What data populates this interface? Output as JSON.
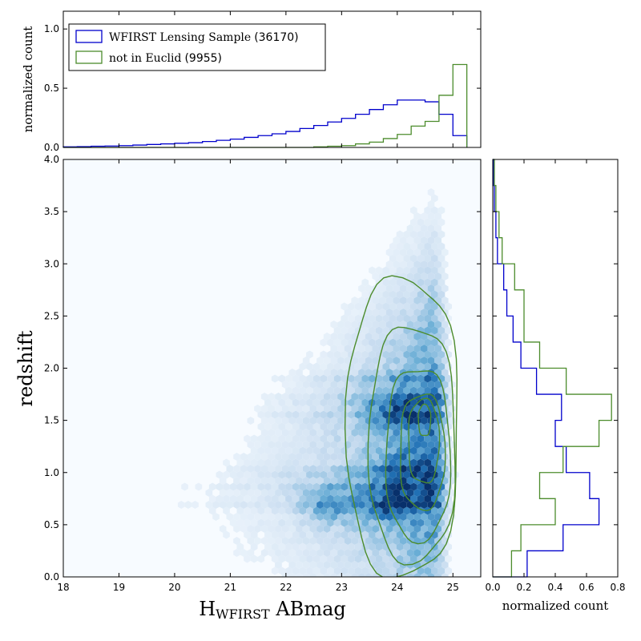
{
  "chart_data": [
    {
      "type": "histogram",
      "panel": "top",
      "ylabel": "normalized count",
      "xlim": [
        18,
        25.5
      ],
      "ylim": [
        0,
        1.15
      ],
      "yticks": [
        "0.0",
        "0.5",
        "1.0"
      ],
      "ytick_values": [
        0,
        0.5,
        1.0
      ],
      "legend": {
        "placement": "upper-left",
        "entries": [
          {
            "label": "WFIRST Lensing Sample",
            "count": "(36170)",
            "color": "#0000cc"
          },
          {
            "label": "not in Euclid",
            "count": "(9955)",
            "color": "#4c8c2c"
          }
        ]
      },
      "bin_edges": [
        18.0,
        18.25,
        18.5,
        18.75,
        19.0,
        19.25,
        19.5,
        19.75,
        20.0,
        20.25,
        20.5,
        20.75,
        21.0,
        21.25,
        21.5,
        21.75,
        22.0,
        22.25,
        22.5,
        22.75,
        23.0,
        23.25,
        23.5,
        23.75,
        24.0,
        24.25,
        24.5,
        24.75,
        25.0,
        25.25
      ],
      "series": [
        {
          "name": "WFIRST Lensing Sample",
          "color": "#0000cc",
          "values": [
            0.005,
            0.007,
            0.01,
            0.012,
            0.015,
            0.02,
            0.025,
            0.03,
            0.035,
            0.04,
            0.05,
            0.06,
            0.07,
            0.085,
            0.1,
            0.115,
            0.135,
            0.16,
            0.185,
            0.215,
            0.245,
            0.28,
            0.32,
            0.36,
            0.4,
            0.4,
            0.385,
            0.28,
            0.1
          ]
        },
        {
          "name": "not in Euclid",
          "color": "#4c8c2c",
          "values": [
            0,
            0,
            0,
            0,
            0,
            0,
            0,
            0,
            0,
            0,
            0,
            0,
            0,
            0,
            0,
            0,
            0,
            0,
            0.005,
            0.01,
            0.015,
            0.03,
            0.045,
            0.075,
            0.11,
            0.18,
            0.22,
            0.44,
            0.7
          ]
        }
      ]
    },
    {
      "type": "heatmap",
      "panel": "main",
      "xlabel": "H",
      "xlabel_sub": "WFIRST",
      "xlabel_suffix": " ABmag",
      "ylabel": "redshift",
      "xlim": [
        18,
        25.5
      ],
      "ylim": [
        0,
        4.0
      ],
      "xticks": [
        "18",
        "19",
        "20",
        "21",
        "22",
        "23",
        "24",
        "25"
      ],
      "xtick_values": [
        18,
        19,
        20,
        21,
        22,
        23,
        24,
        25
      ],
      "yticks": [
        "0.0",
        "0.5",
        "1.0",
        "1.5",
        "2.0",
        "2.5",
        "3.0",
        "3.5",
        "4.0"
      ],
      "ytick_values": [
        0,
        0.5,
        1.0,
        1.5,
        2.0,
        2.5,
        3.0,
        3.5,
        4.0
      ],
      "colormap": [
        "#f7fbff",
        "#c6dbef",
        "#6baed6",
        "#2171b5",
        "#08306b"
      ],
      "density_peaks": [
        {
          "x": 23.9,
          "y": 0.7,
          "w": 1.0
        },
        {
          "x": 24.0,
          "y": 1.6,
          "w": 0.85
        },
        {
          "x": 22.8,
          "y": 0.7,
          "w": 0.65
        },
        {
          "x": 24.2,
          "y": 1.0,
          "w": 0.8
        }
      ],
      "contours": {
        "color": "#4c8c2c",
        "center": [
          24.55,
          1.15
        ],
        "levels": [
          {
            "x": [
              24.38,
              24.6
            ],
            "y": [
              1.35,
              1.65
            ]
          },
          {
            "x": [
              24.2,
              24.75
            ],
            "y": [
              0.9,
              1.7
            ]
          },
          {
            "x": [
              24.05,
              24.85
            ],
            "y": [
              0.65,
              1.75
            ]
          },
          {
            "x": [
              23.8,
              24.95
            ],
            "y": [
              0.35,
              2.0
            ]
          },
          {
            "x": [
              23.5,
              25.05
            ],
            "y": [
              0.15,
              2.4
            ]
          },
          {
            "x": [
              23.1,
              25.1
            ],
            "y": [
              0.0,
              2.85
            ]
          }
        ]
      }
    },
    {
      "type": "histogram",
      "panel": "right",
      "orientation": "horizontal",
      "xlabel": "normalized count",
      "xlim": [
        0,
        0.8
      ],
      "ylim": [
        0,
        4.0
      ],
      "xticks": [
        "0.0",
        "0.2",
        "0.4",
        "0.6",
        "0.8"
      ],
      "xtick_values": [
        0,
        0.2,
        0.4,
        0.6,
        0.8
      ],
      "bin_edges": [
        0.0,
        0.25,
        0.5,
        0.75,
        1.0,
        1.25,
        1.5,
        1.75,
        2.0,
        2.25,
        2.5,
        2.75,
        3.0,
        3.25,
        3.5,
        3.75,
        4.0
      ],
      "series": [
        {
          "name": "WFIRST Lensing Sample",
          "color": "#0000cc",
          "values": [
            0.22,
            0.45,
            0.68,
            0.62,
            0.47,
            0.4,
            0.44,
            0.28,
            0.18,
            0.13,
            0.09,
            0.07,
            0.03,
            0.02,
            0.01,
            0.005
          ]
        },
        {
          "name": "not in Euclid",
          "color": "#4c8c2c",
          "values": [
            0.12,
            0.18,
            0.4,
            0.3,
            0.45,
            0.68,
            0.76,
            0.47,
            0.3,
            0.2,
            0.2,
            0.14,
            0.06,
            0.04,
            0.02,
            0.01
          ]
        }
      ]
    }
  ]
}
